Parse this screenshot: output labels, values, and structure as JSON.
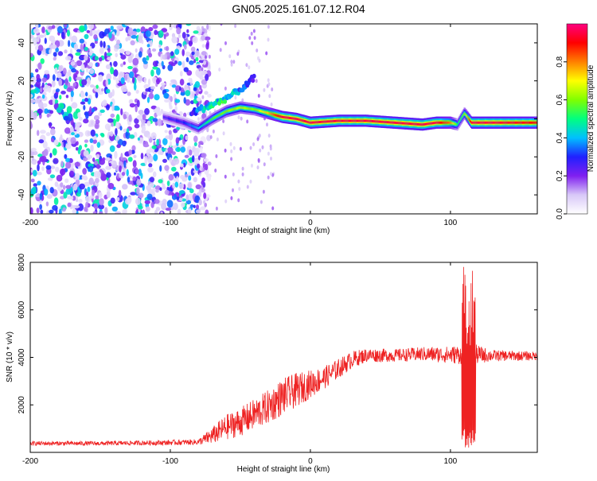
{
  "title": "GN05.2025.161.07.12.R04",
  "chart_data": [
    {
      "type": "heatmap",
      "name": "spectrogram",
      "xlabel": "Height of straight line (km)",
      "ylabel": "Frequency (Hz)",
      "xlim": [
        -200,
        162
      ],
      "ylim": [
        -50,
        50
      ],
      "xticks": [
        -200,
        -100,
        0,
        100
      ],
      "yticks": [
        -40,
        -20,
        0,
        20,
        40
      ],
      "colorbar": {
        "label": "Normalized spectral amplitude",
        "range": [
          0.0,
          1.0
        ],
        "ticks": [
          "0.0",
          "0.2",
          "0.4",
          "0.6",
          "0.8"
        ],
        "colormap": [
          "#ffffff",
          "#d8c8f8",
          "#8020f0",
          "#2020ff",
          "#00c0ff",
          "#00ff80",
          "#80ff00",
          "#ffff00",
          "#ff8000",
          "#ff0000",
          "#ff0080"
        ]
      },
      "noise_region": {
        "x": [
          -200,
          -80
        ],
        "amplitude": 0.25
      },
      "ridge": {
        "x": [
          -105,
          -90,
          -80,
          -70,
          -60,
          -50,
          -40,
          -30,
          -20,
          -10,
          0,
          20,
          40,
          60,
          80,
          90,
          100,
          105,
          110,
          115,
          130,
          162
        ],
        "freq": [
          1,
          -2,
          -5,
          0,
          4,
          6,
          5,
          3,
          1,
          0,
          -2,
          -1,
          -1,
          -2,
          -3,
          -2,
          -2,
          -3,
          3,
          -2,
          -2,
          -2
        ],
        "amplitude": [
          0.25,
          0.3,
          0.4,
          0.55,
          0.6,
          0.65,
          0.6,
          0.75,
          0.95,
          0.95,
          0.95,
          0.95,
          0.95,
          0.95,
          0.95,
          0.95,
          0.8,
          0.5,
          0.6,
          0.95,
          0.95,
          0.9
        ]
      },
      "upper_branch": {
        "x": [
          -85,
          -75,
          -65,
          -55,
          -45,
          -40
        ],
        "freq": [
          3,
          6,
          9,
          13,
          18,
          22
        ],
        "amplitude": [
          0.3,
          0.45,
          0.5,
          0.4,
          0.3,
          0.25
        ]
      }
    },
    {
      "type": "line",
      "name": "snr",
      "xlabel": "Height of straight line (km)",
      "ylabel": "SNR (10 * v/v)",
      "xlim": [
        -200,
        162
      ],
      "ylim": [
        0,
        8000
      ],
      "xticks": [
        -200,
        -100,
        0,
        100
      ],
      "yticks": [
        2000,
        4000,
        6000,
        8000
      ],
      "color": "#ee2222",
      "envelope": {
        "x": [
          -200,
          -150,
          -100,
          -80,
          -70,
          -60,
          -50,
          -40,
          -30,
          -20,
          -10,
          0,
          10,
          20,
          30,
          40,
          60,
          80,
          100,
          108,
          118,
          130,
          162
        ],
        "mean": [
          350,
          350,
          380,
          400,
          600,
          900,
          1100,
          1400,
          1700,
          2100,
          2400,
          2700,
          3000,
          3400,
          3800,
          4000,
          4000,
          4050,
          4000,
          4000,
          4000,
          4000,
          4000
        ],
        "amp": [
          150,
          150,
          180,
          200,
          600,
          900,
          1000,
          1100,
          1200,
          1300,
          1200,
          1000,
          800,
          700,
          600,
          500,
          450,
          500,
          600,
          700,
          700,
          400,
          300
        ]
      },
      "spike": {
        "x": [
          108,
          118
        ],
        "max": 8000,
        "min": 200
      }
    }
  ]
}
